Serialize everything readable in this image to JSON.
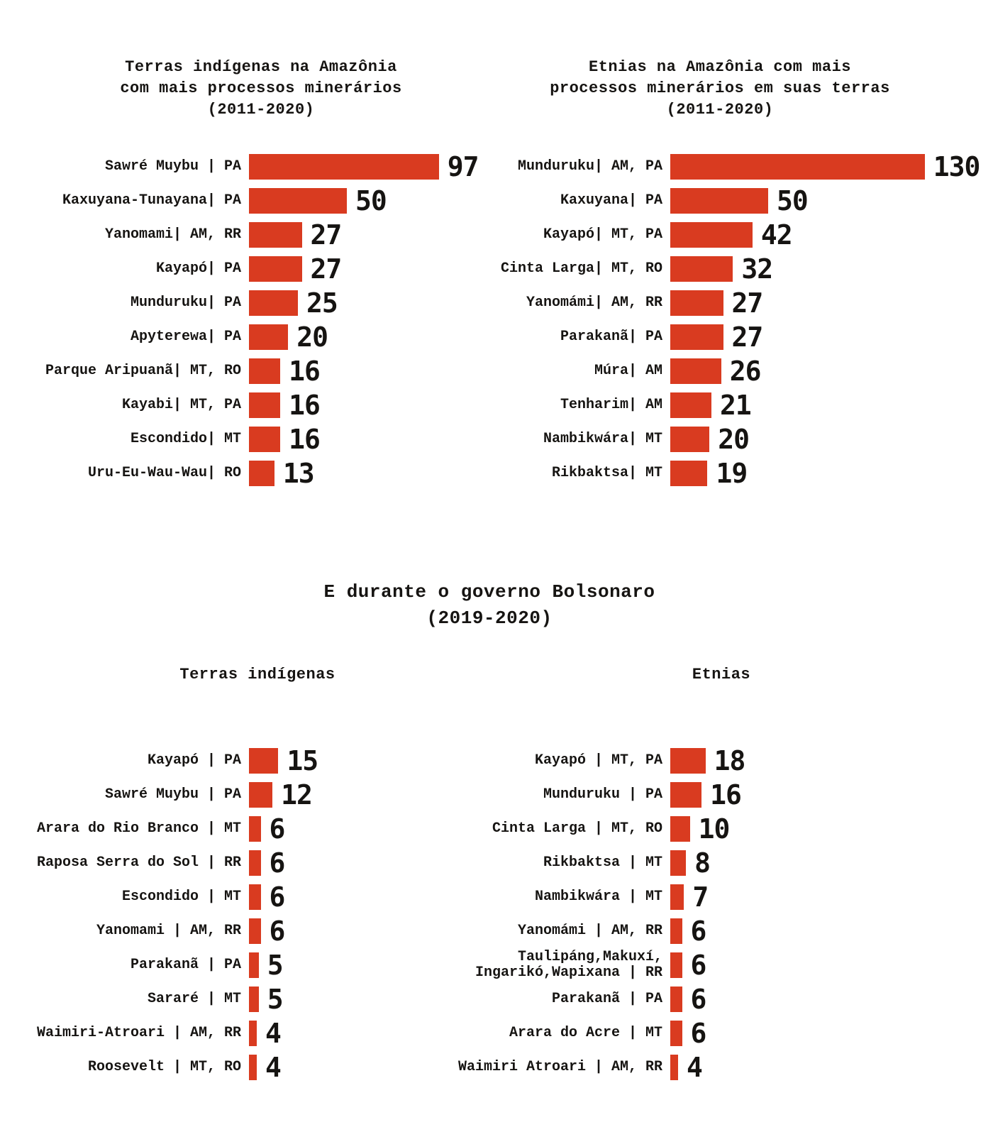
{
  "colors": {
    "bar": "#d93b20",
    "text": "#161412",
    "background": "#ffffff"
  },
  "headings": {
    "bolsonaro_section": [
      "E durante o governo Bolsonaro",
      "(2019-2020)"
    ]
  },
  "chart_data": [
    {
      "id": "terras-indigenas-2011-2020",
      "type": "bar",
      "orientation": "horizontal",
      "title": "Terras indígenas na Amazônia com mais processos minerários (2011-2020)",
      "title_lines": [
        "Terras indígenas na Amazônia",
        "com mais processos minerários",
        "(2011-2020)"
      ],
      "categories": [
        "Sawré Muybu | PA",
        "Kaxuyana-Tunayana| PA",
        "Yanomami| AM, RR",
        "Kayapó| PA",
        "Munduruku| PA",
        "Apyterewa| PA",
        "Parque Aripuanã| MT, RO",
        "Kayabi| MT, PA",
        "Escondido| MT",
        "Uru-Eu-Wau-Wau| RO"
      ],
      "values": [
        97,
        50,
        27,
        27,
        25,
        20,
        16,
        16,
        16,
        13
      ],
      "value_labels": "at bar end",
      "legend": "none",
      "grid": "off"
    },
    {
      "id": "etnias-2011-2020",
      "type": "bar",
      "orientation": "horizontal",
      "title": "Etnias na Amazônia com mais processos minerários em suas terras (2011-2020)",
      "title_lines": [
        "Etnias na Amazônia com mais",
        "processos minerários em suas terras",
        "(2011-2020)"
      ],
      "categories": [
        "Munduruku| AM, PA",
        "Kaxuyana| PA",
        "Kayapó| MT, PA",
        "Cinta Larga| MT, RO",
        "Yanomámi| AM, RR",
        "Parakanã| PA",
        "Múra| AM",
        "Tenharim| AM",
        "Nambikwára| MT",
        "Rikbaktsa| MT"
      ],
      "values": [
        130,
        50,
        42,
        32,
        27,
        27,
        26,
        21,
        20,
        19
      ],
      "value_labels": "at bar end",
      "legend": "none",
      "grid": "off"
    },
    {
      "id": "terras-indigenas-bolsonaro",
      "type": "bar",
      "orientation": "horizontal",
      "title": "Terras indígenas",
      "categories": [
        "Kayapó | PA",
        "Sawré Muybu | PA",
        "Arara do Rio Branco | MT",
        "Raposa Serra do Sol | RR",
        "Escondido | MT",
        "Yanomami | AM, RR",
        "Parakanã | PA",
        "Sararé | MT",
        "Waimiri-Atroari | AM, RR",
        "Roosevelt | MT, RO"
      ],
      "values": [
        15,
        12,
        6,
        6,
        6,
        6,
        5,
        5,
        4,
        4
      ],
      "value_labels": "at bar end",
      "legend": "none",
      "grid": "off"
    },
    {
      "id": "etnias-bolsonaro",
      "type": "bar",
      "orientation": "horizontal",
      "title": "Etnias",
      "categories": [
        "Kayapó | MT, PA",
        "Munduruku | PA",
        "Cinta Larga | MT, RO",
        "Rikbaktsa | MT",
        "Nambikwára | MT",
        "Yanomámi | AM, RR",
        "Taulipáng,Makuxí,\nIngarikó,Wapixana | RR",
        "Parakanã | PA",
        "Arara do Acre | MT",
        "Waimiri Atroari | AM, RR"
      ],
      "values": [
        18,
        16,
        10,
        8,
        7,
        6,
        6,
        6,
        6,
        4
      ],
      "value_labels": "at bar end",
      "legend": "none",
      "grid": "off"
    }
  ]
}
